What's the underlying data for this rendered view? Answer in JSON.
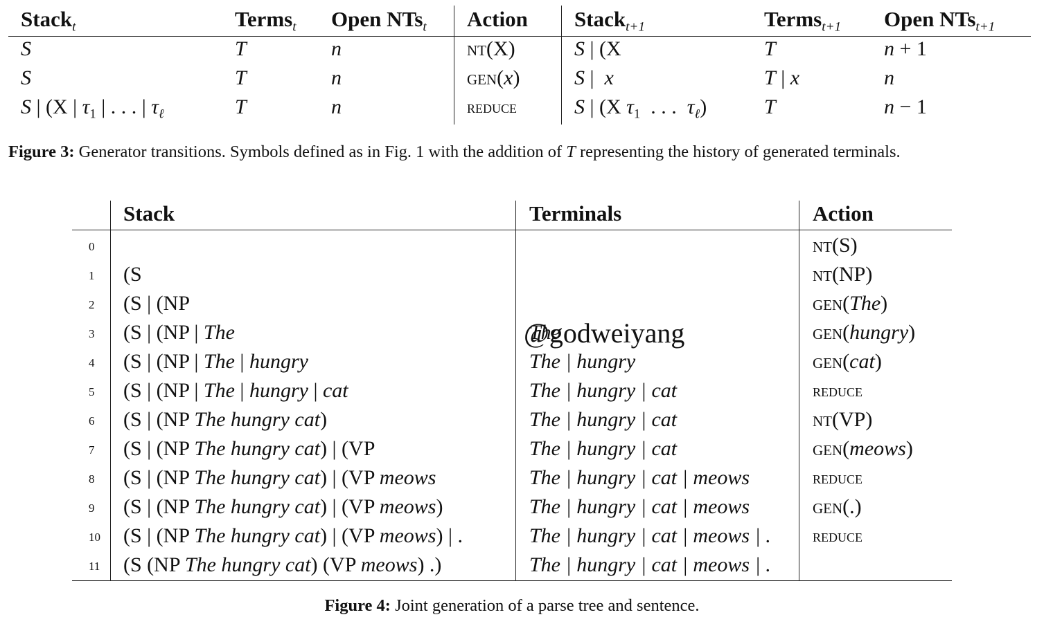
{
  "figure3": {
    "headers": {
      "stack": "Stack",
      "stack_sub": "t",
      "terms": "Terms",
      "terms_sub": "t",
      "open": "Open NTs",
      "open_sub": "t",
      "action": "Action",
      "stack_next": "Stack",
      "stack_next_sub": "t+1",
      "terms_next": "Terms",
      "terms_next_sub": "t+1",
      "open_next": "Open NTs",
      "open_next_sub": "t+1"
    },
    "rows": [
      {
        "stack": "S",
        "terms": "T",
        "open": "n",
        "action": "NT(X)",
        "stack_next": "S | (X",
        "terms_next": "T",
        "open_next": "n + 1"
      },
      {
        "stack": "S",
        "terms": "T",
        "open": "n",
        "action": "GEN(x)",
        "stack_next": "S |  x",
        "terms_next": "T | x",
        "open_next": "n"
      },
      {
        "stack": "S | (X | τ1 | . . . | τℓ",
        "terms": "T",
        "open": "n",
        "action": "REDUCE",
        "stack_next": "S | (X τ1  . . .  τℓ)",
        "terms_next": "T",
        "open_next": "n − 1"
      }
    ],
    "caption_label": "Figure 3:",
    "caption_text": "Generator transitions. Symbols defined as in Fig. 1 with the addition of T representing the history of generated terminals."
  },
  "figure4": {
    "headers": {
      "stack": "Stack",
      "terminals": "Terminals",
      "action": "Action"
    },
    "rows": [
      {
        "num": "0",
        "stack": "",
        "terminals": "",
        "action": "NT(S)"
      },
      {
        "num": "1",
        "stack": "(S",
        "terminals": "",
        "action": "NT(NP)"
      },
      {
        "num": "2",
        "stack": "(S | (NP",
        "terminals": "",
        "action": "GEN(The)"
      },
      {
        "num": "3",
        "stack": "(S | (NP | The",
        "terminals": "The",
        "action": "GEN(hungry)"
      },
      {
        "num": "4",
        "stack": "(S | (NP | The | hungry",
        "terminals": "The | hungry",
        "action": "GEN(cat)"
      },
      {
        "num": "5",
        "stack": "(S | (NP | The | hungry | cat",
        "terminals": "The | hungry | cat",
        "action": "REDUCE"
      },
      {
        "num": "6",
        "stack": "(S | (NP The hungry cat)",
        "terminals": "The | hungry | cat",
        "action": "NT(VP)"
      },
      {
        "num": "7",
        "stack": "(S | (NP The hungry cat) | (VP",
        "terminals": "The | hungry | cat",
        "action": "GEN(meows)"
      },
      {
        "num": "8",
        "stack": "(S | (NP The hungry cat) | (VP meows",
        "terminals": "The | hungry | cat | meows",
        "action": "REDUCE"
      },
      {
        "num": "9",
        "stack": "(S | (NP The hungry cat) | (VP meows)",
        "terminals": "The | hungry | cat | meows",
        "action": "GEN(.)"
      },
      {
        "num": "10",
        "stack": "(S | (NP The hungry cat) | (VP meows) | .",
        "terminals": "The | hungry | cat | meows | .",
        "action": "REDUCE"
      },
      {
        "num": "11",
        "stack": "(S (NP The hungry cat) (VP meows) .)",
        "terminals": "The | hungry | cat | meows | .",
        "action": ""
      }
    ],
    "caption_label": "Figure 4:",
    "caption_text": "Joint generation of a parse tree and sentence."
  },
  "watermark": "@godweiyang"
}
